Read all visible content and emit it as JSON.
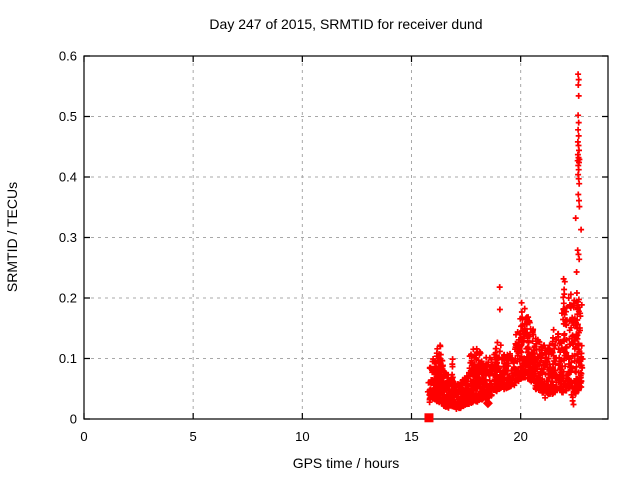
{
  "page": {
    "background": "#ffffff"
  },
  "chart_data": {
    "type": "scatter",
    "title": "Day 247 of 2015, SRMTID for receiver dund",
    "xlabel": "GPS time / hours",
    "ylabel": "SRMTID / TECUs",
    "xlim": [
      0,
      24
    ],
    "ylim": [
      0,
      0.6
    ],
    "xticks": [
      0,
      5,
      10,
      15,
      20
    ],
    "yticks": [
      0,
      0.1,
      0.2,
      0.3,
      0.4,
      0.5,
      0.6
    ],
    "grid": true,
    "legend_position": "none",
    "marker": "plus",
    "marker_color": "#ff0000",
    "axis_color": "#000000",
    "grid_color": "#a8a8a8",
    "seed": 7,
    "data_extent": {
      "x_first": 15.7,
      "x_last": 22.9,
      "y_max": 0.57
    },
    "square_marker": [
      15.8,
      0.002
    ],
    "diamond_marker": [
      18.5,
      0.026
    ],
    "clusters": [
      {
        "x0": 15.82,
        "x1": 16.15,
        "n": 75,
        "lo0": 0.03,
        "lo1": 0.032,
        "hi0": 0.095,
        "hi1": 0.105
      },
      {
        "x0": 16.15,
        "x1": 16.45,
        "n": 110,
        "lo0": 0.03,
        "lo1": 0.028,
        "hi0": 0.118,
        "hi1": 0.092
      },
      {
        "x0": 16.45,
        "x1": 17.05,
        "n": 125,
        "lo0": 0.022,
        "lo1": 0.02,
        "hi0": 0.085,
        "hi1": 0.065
      },
      {
        "x0": 17.05,
        "x1": 17.65,
        "n": 125,
        "lo0": 0.018,
        "lo1": 0.025,
        "hi0": 0.058,
        "hi1": 0.075
      },
      {
        "x0": 17.65,
        "x1": 18.15,
        "n": 110,
        "lo0": 0.028,
        "lo1": 0.032,
        "hi0": 0.105,
        "hi1": 0.115
      },
      {
        "x0": 18.15,
        "x1": 18.75,
        "n": 115,
        "lo0": 0.032,
        "lo1": 0.04,
        "hi0": 0.112,
        "hi1": 0.098
      },
      {
        "x0": 18.75,
        "x1": 19.25,
        "n": 85,
        "lo0": 0.045,
        "lo1": 0.05,
        "hi0": 0.12,
        "hi1": 0.108
      },
      {
        "x0": 19.25,
        "x1": 19.75,
        "n": 65,
        "lo0": 0.05,
        "lo1": 0.058,
        "hi0": 0.105,
        "hi1": 0.118
      },
      {
        "x0": 19.75,
        "x1": 20.15,
        "n": 75,
        "lo0": 0.06,
        "lo1": 0.068,
        "hi0": 0.135,
        "hi1": 0.175
      },
      {
        "x0": 20.15,
        "x1": 20.65,
        "n": 105,
        "lo0": 0.068,
        "lo1": 0.062,
        "hi0": 0.185,
        "hi1": 0.148
      },
      {
        "x0": 20.65,
        "x1": 21.25,
        "n": 105,
        "lo0": 0.048,
        "lo1": 0.044,
        "hi0": 0.138,
        "hi1": 0.118
      },
      {
        "x0": 21.25,
        "x1": 21.85,
        "n": 95,
        "lo0": 0.04,
        "lo1": 0.048,
        "hi0": 0.122,
        "hi1": 0.148
      },
      {
        "x0": 21.85,
        "x1": 22.35,
        "n": 95,
        "lo0": 0.045,
        "lo1": 0.052,
        "hi0": 0.185,
        "hi1": 0.205
      },
      {
        "x0": 22.35,
        "x1": 22.85,
        "n": 100,
        "lo0": 0.035,
        "lo1": 0.058,
        "hi0": 0.198,
        "hi1": 0.192
      }
    ],
    "streaks": [
      {
        "x": 16.3,
        "n": 13,
        "y0": 0.05,
        "y1": 0.124
      },
      {
        "x": 16.88,
        "n": 8,
        "y0": 0.04,
        "y1": 0.103
      },
      {
        "x": 17.8,
        "n": 8,
        "y0": 0.042,
        "y1": 0.112
      },
      {
        "x": 18.0,
        "n": 8,
        "y0": 0.05,
        "y1": 0.118
      },
      {
        "x": 18.9,
        "n": 7,
        "y0": 0.06,
        "y1": 0.125
      },
      {
        "x": 20.03,
        "n": 10,
        "y0": 0.1,
        "y1": 0.192
      },
      {
        "x": 20.3,
        "n": 9,
        "y0": 0.095,
        "y1": 0.16
      },
      {
        "x": 21.5,
        "n": 8,
        "y0": 0.075,
        "y1": 0.148
      },
      {
        "x": 21.97,
        "n": 10,
        "y0": 0.1,
        "y1": 0.222
      },
      {
        "x": 22.62,
        "n": 12,
        "y0": 0.115,
        "y1": 0.205
      }
    ],
    "outlier_points": [
      [
        22.63,
        0.57
      ],
      [
        22.66,
        0.561
      ],
      [
        22.64,
        0.552
      ],
      [
        22.66,
        0.534
      ],
      [
        22.63,
        0.502
      ],
      [
        22.66,
        0.49
      ],
      [
        22.63,
        0.478
      ],
      [
        22.66,
        0.468
      ],
      [
        22.62,
        0.458
      ],
      [
        22.65,
        0.452
      ],
      [
        22.67,
        0.444
      ],
      [
        22.62,
        0.437
      ],
      [
        22.65,
        0.432
      ],
      [
        22.69,
        0.429
      ],
      [
        22.61,
        0.427
      ],
      [
        22.67,
        0.424
      ],
      [
        22.64,
        0.419
      ],
      [
        22.66,
        0.412
      ],
      [
        22.63,
        0.404
      ],
      [
        22.66,
        0.397
      ],
      [
        22.68,
        0.389
      ],
      [
        22.64,
        0.371
      ],
      [
        22.67,
        0.361
      ],
      [
        22.69,
        0.351
      ],
      [
        22.52,
        0.332
      ],
      [
        22.77,
        0.313
      ],
      [
        22.61,
        0.279
      ],
      [
        22.65,
        0.272
      ],
      [
        22.68,
        0.264
      ],
      [
        22.56,
        0.243
      ],
      [
        22.02,
        0.227
      ],
      [
        21.99,
        0.214
      ],
      [
        22.2,
        0.2
      ],
      [
        22.3,
        0.206
      ],
      [
        22.45,
        0.196
      ],
      [
        19.04,
        0.218
      ],
      [
        19.05,
        0.181
      ],
      [
        19.09,
        0.122
      ],
      [
        22.33,
        0.04
      ],
      [
        22.38,
        0.03
      ],
      [
        22.42,
        0.024
      ],
      [
        22.47,
        0.048
      ],
      [
        21.12,
        0.035
      ],
      [
        16.95,
        0.02
      ],
      [
        17.25,
        0.018
      ],
      [
        15.75,
        0.045
      ],
      [
        15.78,
        0.06
      ]
    ]
  }
}
